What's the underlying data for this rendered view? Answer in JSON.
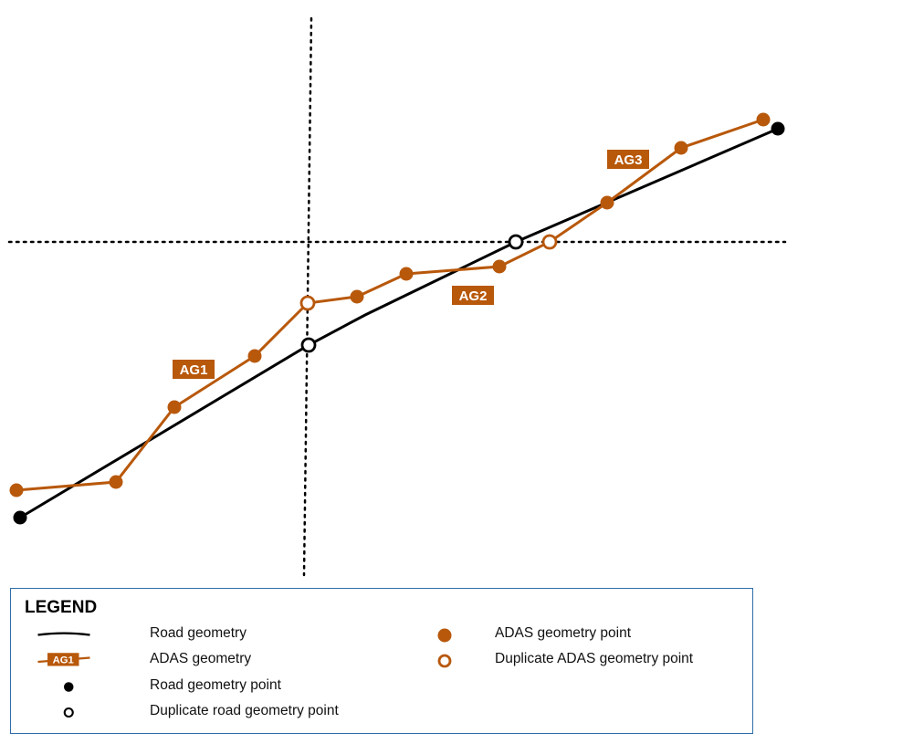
{
  "colors": {
    "road": "#000000",
    "adas": "#b8580b",
    "legend_border": "#2f6ea8",
    "guide": "#000000"
  },
  "road_geometry": {
    "points": [
      {
        "kind": "road-point"
      },
      {
        "kind": "duplicate-road-point"
      },
      {
        "kind": "duplicate-road-point"
      },
      {
        "kind": "road-point"
      }
    ]
  },
  "adas_geometry": {
    "segments": [
      {
        "label": "AG1"
      },
      {
        "label": "AG2"
      },
      {
        "label": "AG3"
      }
    ],
    "points": [
      {
        "kind": "adas-point"
      },
      {
        "kind": "adas-point"
      },
      {
        "kind": "adas-point"
      },
      {
        "kind": "adas-point"
      },
      {
        "kind": "duplicate-adas-point"
      },
      {
        "kind": "adas-point"
      },
      {
        "kind": "adas-point"
      },
      {
        "kind": "adas-point"
      },
      {
        "kind": "duplicate-adas-point"
      },
      {
        "kind": "adas-point"
      },
      {
        "kind": "adas-point"
      },
      {
        "kind": "adas-point"
      }
    ]
  },
  "legend": {
    "title": "LEGEND",
    "items": [
      {
        "symbol": "road-line",
        "label": "Road geometry"
      },
      {
        "symbol": "adas-line",
        "symbol_text": "AG1",
        "label": "ADAS geometry"
      },
      {
        "symbol": "road-point",
        "label": "Road geometry point"
      },
      {
        "symbol": "duplicate-road-point",
        "label": "Duplicate road geometry point"
      },
      {
        "symbol": "adas-point",
        "label": "ADAS geometry point"
      },
      {
        "symbol": "duplicate-adas-point",
        "label": "Duplicate ADAS geometry point"
      }
    ]
  }
}
